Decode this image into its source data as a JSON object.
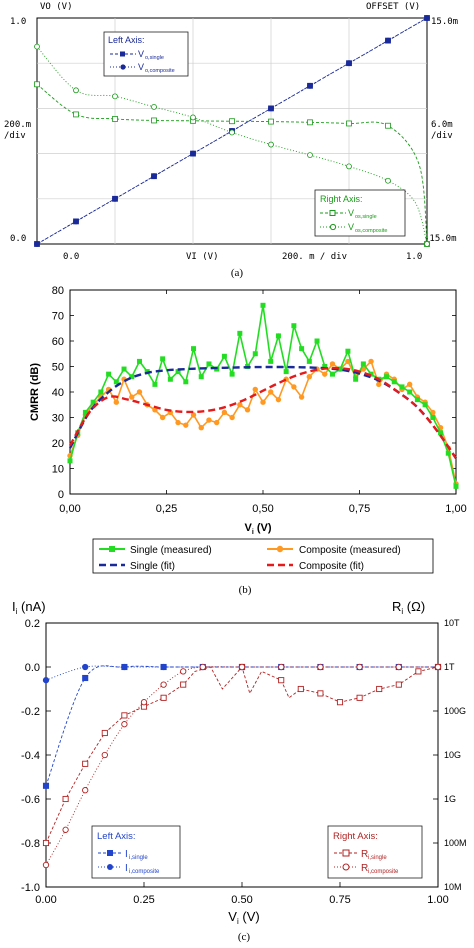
{
  "chart_data": [
    {
      "type": "line",
      "panel_label": "(a)",
      "left_axis": {
        "top": "1.0",
        "mid": "200.m",
        "mid2": "/div",
        "bottom": "0.0",
        "header": "VO (V)"
      },
      "right_axis": {
        "top": "15.0m",
        "mid": "6.0m",
        "mid2": "/div",
        "bottom": "-15.0m",
        "header": "OFFSET (V)"
      },
      "x_axis": {
        "left": "0.0",
        "mid1": "VI (V)",
        "mid2": "200. m / div",
        "right": "1.0"
      },
      "legend_left": {
        "title": "Left Axis:",
        "items": [
          "V",
          "V"
        ],
        "subs": [
          "o,single",
          "o,composite"
        ]
      },
      "legend_right": {
        "title": "Right Axis:",
        "items": [
          "V",
          "V"
        ],
        "subs": [
          "os,single",
          "os,composite"
        ]
      },
      "series": [
        {
          "x": [
            0,
            0.1,
            0.2,
            0.3,
            0.4,
            0.5,
            0.6,
            0.7,
            0.8,
            0.9,
            1.0
          ],
          "y": [
            0,
            0.1,
            0.2,
            0.3,
            0.4,
            0.5,
            0.6,
            0.7,
            0.8,
            0.9,
            1.0
          ],
          "axis": "left"
        },
        {
          "x": [
            0,
            0.1,
            0.2,
            0.3,
            0.4,
            0.5,
            0.6,
            0.7,
            0.8,
            0.9,
            1.0
          ],
          "y": [
            0,
            0.1,
            0.2,
            0.3,
            0.4,
            0.5,
            0.6,
            0.7,
            0.8,
            0.9,
            1.0
          ],
          "axis": "left"
        },
        {
          "x": [
            0,
            0.1,
            0.2,
            0.3,
            0.4,
            0.5,
            0.6,
            0.7,
            0.8,
            0.9,
            0.98,
            1.0
          ],
          "y": [
            6.2,
            2.2,
            1.6,
            1.4,
            1.35,
            1.3,
            1.25,
            1.15,
            1.0,
            0.7,
            -4.5,
            -15.0
          ],
          "axis": "right"
        },
        {
          "x": [
            0,
            0.1,
            0.2,
            0.3,
            0.4,
            0.5,
            0.6,
            0.7,
            0.8,
            0.9,
            0.97,
            1.0
          ],
          "y": [
            11.2,
            5.4,
            4.6,
            3.2,
            1.8,
            -0.2,
            -1.8,
            -3.2,
            -4.7,
            -6.6,
            -9.5,
            -15.0
          ],
          "axis": "right"
        }
      ],
      "xlim": [
        0,
        1
      ],
      "ylim_left": [
        0,
        1
      ],
      "ylim_right": [
        -15,
        15
      ],
      "grid": true
    },
    {
      "type": "line",
      "panel_label": "(b)",
      "ylabel": "CMRR (dB)",
      "xlabel": "V",
      "xlabel_sub": "i",
      "xlabel_unit": "(V)",
      "xticks": [
        "0,00",
        "0,25",
        "0,50",
        "0,75",
        "1,00"
      ],
      "yticks": [
        "0",
        "10",
        "20",
        "30",
        "40",
        "50",
        "60",
        "70",
        "80"
      ],
      "xlim": [
        0,
        1
      ],
      "ylim": [
        0,
        80
      ],
      "legend": [
        "Single (measured)",
        "Composite (measured)",
        "Single (fit)",
        "Composite (fit)"
      ],
      "series": [
        {
          "name": "Single (measured)",
          "x": [
            0.0,
            0.02,
            0.04,
            0.06,
            0.08,
            0.1,
            0.12,
            0.14,
            0.16,
            0.18,
            0.2,
            0.22,
            0.24,
            0.26,
            0.28,
            0.3,
            0.32,
            0.34,
            0.36,
            0.38,
            0.4,
            0.42,
            0.44,
            0.46,
            0.48,
            0.5,
            0.52,
            0.54,
            0.56,
            0.58,
            0.6,
            0.62,
            0.64,
            0.66,
            0.68,
            0.7,
            0.72,
            0.74,
            0.76,
            0.78,
            0.8,
            0.82,
            0.84,
            0.86,
            0.88,
            0.9,
            0.92,
            0.94,
            0.96,
            0.98,
            1.0
          ],
          "values": [
            13,
            24,
            32,
            36,
            40,
            47,
            44,
            49,
            46,
            52,
            48,
            43,
            53,
            45,
            48,
            44,
            57,
            46,
            51,
            49,
            54,
            47,
            63,
            50,
            55,
            74,
            52,
            62,
            48,
            66,
            57,
            52,
            60,
            50,
            47,
            49,
            56,
            45,
            51,
            47,
            45,
            46,
            44,
            42,
            40,
            37,
            35,
            30,
            24,
            16,
            3
          ]
        },
        {
          "name": "Composite (measured)",
          "x": [
            0.0,
            0.02,
            0.04,
            0.06,
            0.08,
            0.1,
            0.12,
            0.14,
            0.16,
            0.18,
            0.2,
            0.22,
            0.24,
            0.26,
            0.28,
            0.3,
            0.32,
            0.34,
            0.36,
            0.38,
            0.4,
            0.42,
            0.44,
            0.46,
            0.48,
            0.5,
            0.52,
            0.54,
            0.56,
            0.58,
            0.6,
            0.62,
            0.64,
            0.66,
            0.68,
            0.7,
            0.72,
            0.74,
            0.76,
            0.78,
            0.8,
            0.82,
            0.84,
            0.86,
            0.88,
            0.9,
            0.92,
            0.94,
            0.96,
            0.98,
            1.0
          ],
          "values": [
            15,
            23,
            31,
            35,
            38,
            41,
            36,
            45,
            38,
            40,
            35,
            33,
            30,
            32,
            28,
            27,
            31,
            26,
            29,
            28,
            32,
            30,
            35,
            33,
            41,
            36,
            40,
            37,
            45,
            42,
            38,
            46,
            49,
            47,
            51,
            49,
            52,
            46,
            49,
            52,
            43,
            47,
            45,
            41,
            43,
            38,
            36,
            32,
            26,
            18,
            4
          ]
        },
        {
          "name": "Single (fit)",
          "x": [
            0.0,
            0.05,
            0.1,
            0.15,
            0.2,
            0.25,
            0.3,
            0.35,
            0.4,
            0.45,
            0.5,
            0.55,
            0.6,
            0.65,
            0.7,
            0.75,
            0.8,
            0.85,
            0.9,
            0.95,
            1.0
          ],
          "values": [
            18,
            32,
            40,
            45,
            47.5,
            48.5,
            49,
            49.3,
            49.5,
            49.7,
            49.8,
            49.8,
            49.7,
            49.4,
            48.8,
            47.2,
            44.5,
            40,
            34,
            25,
            14
          ]
        },
        {
          "name": "Composite (fit)",
          "x": [
            0.0,
            0.05,
            0.1,
            0.15,
            0.2,
            0.25,
            0.3,
            0.35,
            0.4,
            0.45,
            0.5,
            0.55,
            0.6,
            0.65,
            0.7,
            0.75,
            0.8,
            0.85,
            0.9,
            0.95,
            1.0
          ],
          "values": [
            19,
            32,
            38,
            37,
            35,
            33,
            32.2,
            32.5,
            34,
            36.8,
            40.5,
            44.2,
            47.2,
            49,
            49.3,
            48,
            45,
            40,
            34,
            25,
            14
          ]
        }
      ],
      "colors": {
        "single": "#22dd22",
        "composite": "#ff9922",
        "single_fit": "#1a2a99",
        "composite_fit": "#e51a1a"
      }
    },
    {
      "type": "line",
      "panel_label": "(c)",
      "ylabel_left": "I",
      "ylabel_left_sub": "i",
      "ylabel_left_unit": "(nA)",
      "ylabel_right": "R",
      "ylabel_right_sub": "i",
      "ylabel_right_unit": "(Ω)",
      "xlabel": "V",
      "xlabel_sub": "i",
      "xlabel_unit": "(V)",
      "xticks": [
        "0.00",
        "0.25",
        "0.50",
        "0.75",
        "1.00"
      ],
      "yticks_left": [
        "-1.0",
        "-0.8",
        "-0.6",
        "-0.4",
        "-0.2",
        "0.0",
        "0.2"
      ],
      "yticks_right": [
        "10M",
        "100M",
        "1G",
        "10G",
        "100G",
        "1T",
        "10T"
      ],
      "xlim": [
        0,
        1
      ],
      "ylim_left": [
        -1.0,
        0.2
      ],
      "ylim_right_log10": [
        7,
        13
      ],
      "legend_left": {
        "title": "Left Axis:",
        "items": [
          "I",
          "I"
        ],
        "subs": [
          "i,single",
          "i,composite"
        ]
      },
      "legend_right": {
        "title": "Right Axis:",
        "items": [
          "R",
          "R"
        ],
        "subs": [
          "i,single",
          "i,composite"
        ]
      },
      "series": [
        {
          "name_sub": "i,single",
          "x": [
            0.0,
            0.1,
            0.2,
            0.3,
            0.4,
            0.5,
            0.6,
            0.7,
            0.8,
            0.9,
            1.0
          ],
          "values": [
            -0.54,
            -0.05,
            0.0,
            0.0,
            0.0,
            0.0,
            0.0,
            0.0,
            0.0,
            0.0,
            0.0
          ]
        },
        {
          "name_sub": "i,composite",
          "x": [
            0.0,
            0.1,
            0.2,
            0.3,
            0.4,
            0.5,
            0.6,
            0.7,
            0.8,
            0.9,
            1.0
          ],
          "values": [
            -0.06,
            0.0,
            0.0,
            0.0,
            0.0,
            0.0,
            0.0,
            0.0,
            0.0,
            0.0,
            0.0
          ]
        },
        {
          "name_sub": "i,single",
          "x": [
            0.0,
            0.05,
            0.1,
            0.15,
            0.2,
            0.25,
            0.3,
            0.35,
            0.38,
            0.42,
            0.45,
            0.5,
            0.52,
            0.55,
            0.6,
            0.62,
            0.65,
            0.7,
            0.75,
            0.8,
            0.85,
            0.9,
            0.95,
            1.0
          ],
          "values": [
            8.0,
            9.0,
            9.8,
            10.5,
            10.9,
            11.1,
            11.3,
            11.6,
            11.9,
            12.0,
            11.5,
            12.0,
            11.4,
            11.9,
            11.7,
            11.3,
            11.5,
            11.4,
            11.2,
            11.3,
            11.5,
            11.6,
            11.9,
            12.0
          ]
        },
        {
          "name_sub": "i,composite",
          "x": [
            0.0,
            0.05,
            0.1,
            0.15,
            0.2,
            0.25,
            0.3,
            0.35,
            0.4,
            0.5,
            0.6,
            0.7,
            0.8,
            0.9,
            1.0
          ],
          "values": [
            7.5,
            8.3,
            9.2,
            10.0,
            10.7,
            11.2,
            11.6,
            11.9,
            12.0,
            12.0,
            12.0,
            12.0,
            12.0,
            12.0,
            12.0
          ]
        }
      ],
      "colors": {
        "blue": "#2244cc",
        "red": "#b22222"
      }
    }
  ]
}
